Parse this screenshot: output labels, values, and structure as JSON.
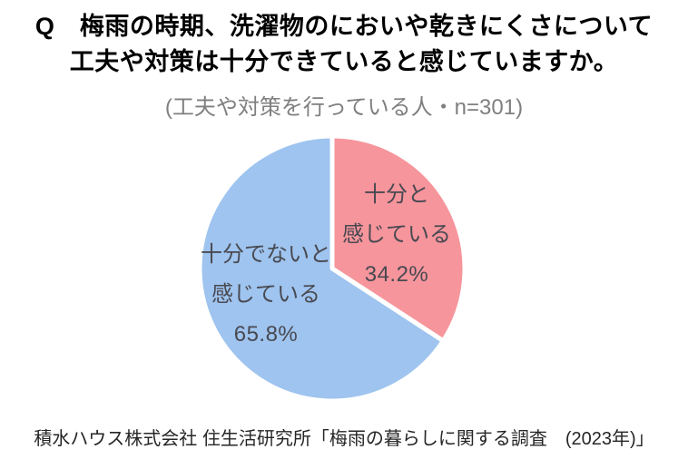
{
  "page": {
    "title_line1": "Q　梅雨の時期、洗濯物のにおいや乾きにくさについて",
    "title_line2": "工夫や対策は十分できていると感じていますか。",
    "subtitle": "(工夫や対策を行っている人・n=301)",
    "footer": "積水ハウス株式会社 住生活研究所「梅雨の暮らしに関する調査　(2023年)」"
  },
  "chart_data": {
    "type": "pie",
    "title": "Q 梅雨の時期、洗濯物のにおいや乾きにくさについて 工夫や対策は十分できていると感じていますか。",
    "subtitle": "(工夫や対策を行っている人・n=301)",
    "sample_note": "工夫や対策を行っている人",
    "n": 301,
    "start_angle_deg": 0,
    "direction": "clockwise",
    "slice_border_color": "#ffffff",
    "label_text_color": "#494951",
    "slices": [
      {
        "label": "十分と感じている",
        "value": 34.2,
        "pct_label": "34.2%",
        "color": "#F6959C",
        "text_lines": [
          "十分と",
          "感じている"
        ]
      },
      {
        "label": "十分でないと感じている",
        "value": 65.8,
        "pct_label": "65.8%",
        "color": "#9EC4EF",
        "text_lines": [
          "十分でないと",
          "感じている"
        ]
      }
    ]
  }
}
